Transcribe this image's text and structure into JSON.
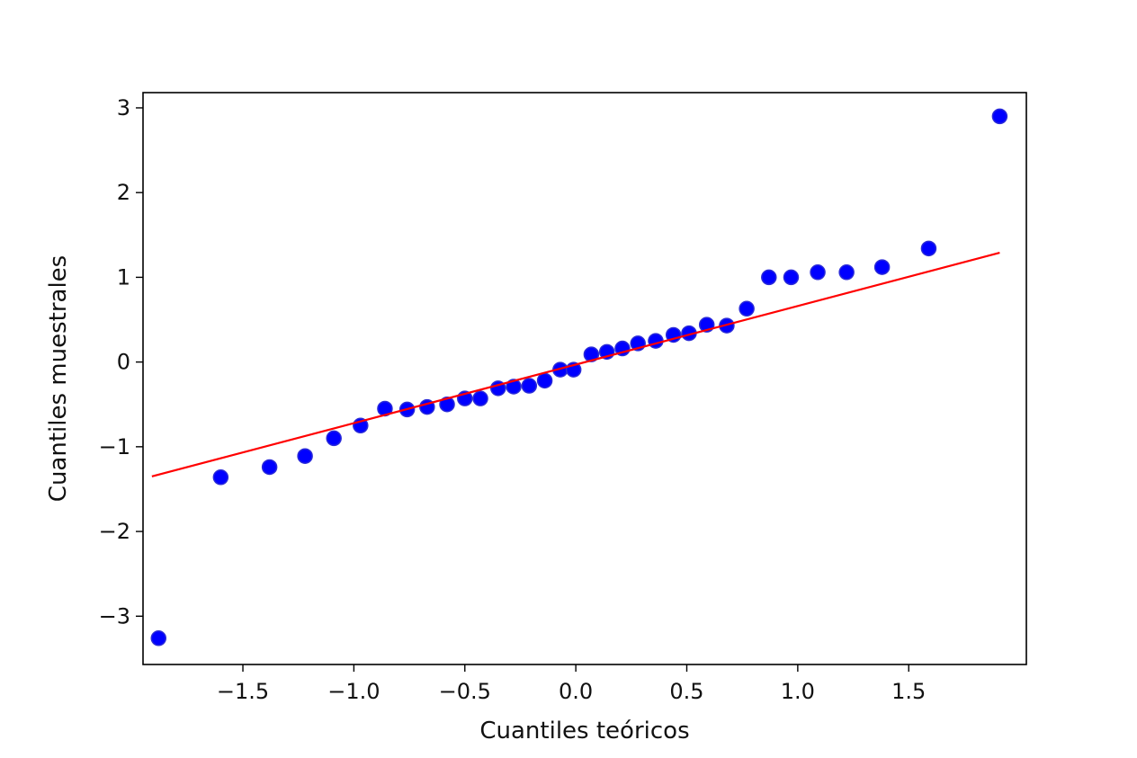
{
  "chart_data": {
    "type": "scatter",
    "xlabel": "Cuantiles teóricos",
    "ylabel": "Cuantiles muestrales",
    "xlim": [
      -1.95,
      2.03
    ],
    "ylim": [
      -3.57,
      3.18
    ],
    "grid": false,
    "xticks": [
      {
        "value": -1.5,
        "label": "−1.5"
      },
      {
        "value": -1.0,
        "label": "−1.0"
      },
      {
        "value": -0.5,
        "label": "−0.5"
      },
      {
        "value": 0.0,
        "label": "0.0"
      },
      {
        "value": 0.5,
        "label": "0.5"
      },
      {
        "value": 1.0,
        "label": "1.0"
      },
      {
        "value": 1.5,
        "label": "1.5"
      }
    ],
    "yticks": [
      {
        "value": -3,
        "label": "−3"
      },
      {
        "value": -2,
        "label": "−2"
      },
      {
        "value": -1,
        "label": "−1"
      },
      {
        "value": 0,
        "label": "0"
      },
      {
        "value": 1,
        "label": "1"
      },
      {
        "value": 2,
        "label": "2"
      },
      {
        "value": 3,
        "label": "3"
      }
    ],
    "series": [
      {
        "kind": "points",
        "color": "#0000ff",
        "points": [
          [
            -1.88,
            -3.26
          ],
          [
            -1.6,
            -1.36
          ],
          [
            -1.38,
            -1.24
          ],
          [
            -1.22,
            -1.11
          ],
          [
            -1.09,
            -0.9
          ],
          [
            -0.97,
            -0.75
          ],
          [
            -0.86,
            -0.55
          ],
          [
            -0.76,
            -0.56
          ],
          [
            -0.67,
            -0.53
          ],
          [
            -0.58,
            -0.5
          ],
          [
            -0.5,
            -0.43
          ],
          [
            -0.43,
            -0.43
          ],
          [
            -0.35,
            -0.31
          ],
          [
            -0.28,
            -0.29
          ],
          [
            -0.21,
            -0.28
          ],
          [
            -0.14,
            -0.22
          ],
          [
            -0.07,
            -0.09
          ],
          [
            -0.01,
            -0.09
          ],
          [
            0.07,
            0.09
          ],
          [
            0.14,
            0.12
          ],
          [
            0.21,
            0.16
          ],
          [
            0.28,
            0.22
          ],
          [
            0.36,
            0.25
          ],
          [
            0.44,
            0.32
          ],
          [
            0.51,
            0.34
          ],
          [
            0.59,
            0.44
          ],
          [
            0.68,
            0.43
          ],
          [
            0.77,
            0.63
          ],
          [
            0.87,
            1.0
          ],
          [
            0.97,
            1.0
          ],
          [
            1.09,
            1.06
          ],
          [
            1.22,
            1.06
          ],
          [
            1.38,
            1.12
          ],
          [
            1.59,
            1.34
          ],
          [
            1.91,
            2.9
          ]
        ]
      },
      {
        "kind": "line",
        "color": "#ff0000",
        "points": [
          [
            -1.91,
            -1.35
          ],
          [
            1.91,
            1.29
          ]
        ]
      }
    ]
  }
}
